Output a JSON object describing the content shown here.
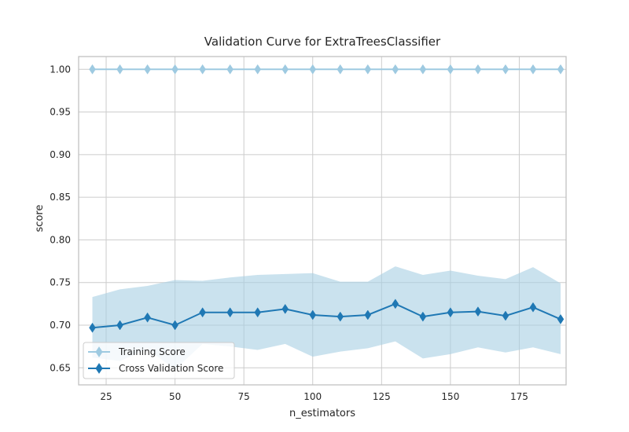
{
  "chart_data": {
    "type": "line",
    "title": "Validation Curve for ExtraTreesClassifier",
    "xlabel": "n_estimators",
    "ylabel": "score",
    "xlim": [
      15,
      192
    ],
    "ylim": [
      0.63,
      1.015
    ],
    "xticks": [
      25,
      50,
      75,
      100,
      125,
      150,
      175
    ],
    "yticks": [
      0.65,
      0.7,
      0.75,
      0.8,
      0.85,
      0.9,
      0.95,
      1.0
    ],
    "xtick_labels": [
      "25",
      "50",
      "75",
      "100",
      "125",
      "150",
      "175"
    ],
    "ytick_labels": [
      "0.65",
      "0.70",
      "0.75",
      "0.80",
      "0.85",
      "0.90",
      "0.95",
      "1.00"
    ],
    "grid": true,
    "legend_position": "lower-left",
    "x": [
      20,
      30,
      40,
      50,
      60,
      70,
      80,
      90,
      100,
      110,
      120,
      130,
      140,
      150,
      160,
      170,
      180,
      190
    ],
    "series": [
      {
        "name": "Training Score",
        "color": "#9ecae1",
        "marker": "diamond",
        "values": [
          1.0,
          1.0,
          1.0,
          1.0,
          1.0,
          1.0,
          1.0,
          1.0,
          1.0,
          1.0,
          1.0,
          1.0,
          1.0,
          1.0,
          1.0,
          1.0,
          1.0,
          1.0
        ],
        "band_lower": [
          1.0,
          1.0,
          1.0,
          1.0,
          1.0,
          1.0,
          1.0,
          1.0,
          1.0,
          1.0,
          1.0,
          1.0,
          1.0,
          1.0,
          1.0,
          1.0,
          1.0,
          1.0
        ],
        "band_upper": [
          1.0,
          1.0,
          1.0,
          1.0,
          1.0,
          1.0,
          1.0,
          1.0,
          1.0,
          1.0,
          1.0,
          1.0,
          1.0,
          1.0,
          1.0,
          1.0,
          1.0,
          1.0
        ]
      },
      {
        "name": "Cross Validation Score",
        "color": "#1f78b4",
        "band_color": "#a6cee3",
        "marker": "diamond",
        "values": [
          0.697,
          0.7,
          0.709,
          0.7,
          0.715,
          0.715,
          0.715,
          0.719,
          0.712,
          0.71,
          0.712,
          0.725,
          0.71,
          0.715,
          0.716,
          0.711,
          0.721,
          0.707
        ],
        "band_lower": [
          0.662,
          0.658,
          0.672,
          0.648,
          0.678,
          0.675,
          0.671,
          0.678,
          0.663,
          0.669,
          0.673,
          0.681,
          0.661,
          0.666,
          0.674,
          0.668,
          0.674,
          0.666
        ],
        "band_upper": [
          0.733,
          0.742,
          0.746,
          0.753,
          0.752,
          0.756,
          0.759,
          0.76,
          0.761,
          0.751,
          0.751,
          0.769,
          0.759,
          0.764,
          0.758,
          0.754,
          0.768,
          0.749
        ]
      }
    ]
  },
  "colors": {
    "grid": "#cccccc",
    "axes_edge": "#bfbfbf",
    "text": "#262626"
  }
}
